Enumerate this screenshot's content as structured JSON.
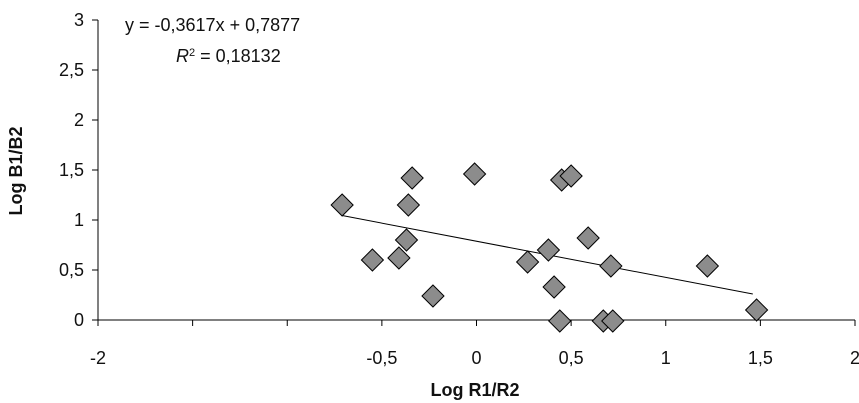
{
  "chart_data": {
    "type": "scatter",
    "xlabel": "Log R1/R2",
    "ylabel": "Log B1/B2",
    "xlim": [
      -2,
      2
    ],
    "ylim": [
      0,
      3
    ],
    "x_ticks": [
      "-2",
      "-0,5",
      "0",
      "0,5",
      "1",
      "1,5",
      "2"
    ],
    "x_tick_values": [
      -2,
      -0.5,
      0,
      0.5,
      1,
      1.5,
      2
    ],
    "y_ticks": [
      "0",
      "0,5",
      "1",
      "1,5",
      "2",
      "2,5",
      "3"
    ],
    "y_tick_values": [
      0,
      0.5,
      1,
      1.5,
      2,
      2.5,
      3
    ],
    "grid": false,
    "legend": "none",
    "marker": "diamond",
    "marker_color": "#8c8c8c",
    "marker_edge_color": "#000000",
    "trendline": {
      "slope": -0.3617,
      "intercept": 0.7877,
      "x_range": [
        -0.71,
        1.46
      ]
    },
    "equation_label": "y = -0,3617x + 0,7877",
    "r2_prefix": "R",
    "r2_sup": "2",
    "r2_value": " = 0,18132",
    "points": [
      {
        "x": -0.71,
        "y": 1.15
      },
      {
        "x": -0.55,
        "y": 0.6
      },
      {
        "x": -0.41,
        "y": 0.62
      },
      {
        "x": -0.37,
        "y": 0.8
      },
      {
        "x": -0.36,
        "y": 1.15
      },
      {
        "x": -0.34,
        "y": 1.42
      },
      {
        "x": -0.23,
        "y": 0.24
      },
      {
        "x": -0.01,
        "y": 1.46
      },
      {
        "x": 0.27,
        "y": 0.58
      },
      {
        "x": 0.38,
        "y": 0.7
      },
      {
        "x": 0.41,
        "y": 0.33
      },
      {
        "x": 0.44,
        "y": -0.01
      },
      {
        "x": 0.45,
        "y": 1.4
      },
      {
        "x": 0.5,
        "y": 1.44
      },
      {
        "x": 0.59,
        "y": 0.82
      },
      {
        "x": 0.67,
        "y": -0.01
      },
      {
        "x": 0.71,
        "y": 0.54
      },
      {
        "x": 0.72,
        "y": -0.01
      },
      {
        "x": 1.22,
        "y": 0.54
      },
      {
        "x": 1.48,
        "y": 0.1
      }
    ]
  }
}
